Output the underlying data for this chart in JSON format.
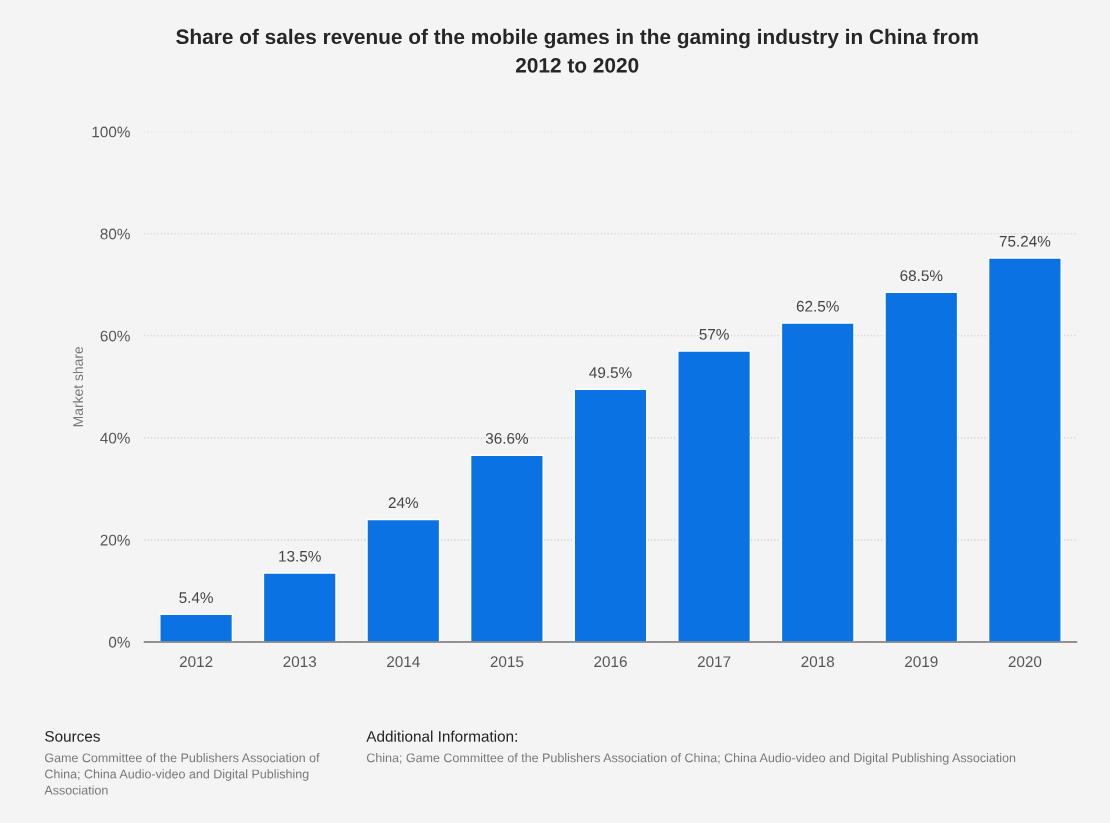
{
  "chart_data": {
    "type": "bar",
    "title": "Share of sales revenue of the mobile games in the gaming industry in China from 2012 to 2020",
    "ylabel": "Market share",
    "categories": [
      "2012",
      "2013",
      "2014",
      "2015",
      "2016",
      "2017",
      "2018",
      "2019",
      "2020"
    ],
    "values": [
      5.4,
      13.5,
      24,
      36.6,
      49.5,
      57,
      62.5,
      68.5,
      75.24
    ],
    "value_labels": [
      "5.4%",
      "13.5%",
      "24%",
      "36.6%",
      "49.5%",
      "57%",
      "62.5%",
      "68.5%",
      "75.24%"
    ],
    "color": "#0b72e3",
    "ylim": [
      0,
      100
    ],
    "yticks": [
      {
        "value": 0,
        "label": "0%"
      },
      {
        "value": 20,
        "label": "20%"
      },
      {
        "value": 40,
        "label": "40%"
      },
      {
        "value": 60,
        "label": "60%"
      },
      {
        "value": 80,
        "label": "80%"
      },
      {
        "value": 100,
        "label": "100%"
      }
    ],
    "grid": "y",
    "annotations": [
      "Sources",
      "Game Committee of the Publishers Association of China; China Audio-video and Digital Publishing Association",
      "Additional Information:",
      "China; Game Committee of the Publishers Association of China; China Audio-video and Digital Publishing Association"
    ]
  }
}
